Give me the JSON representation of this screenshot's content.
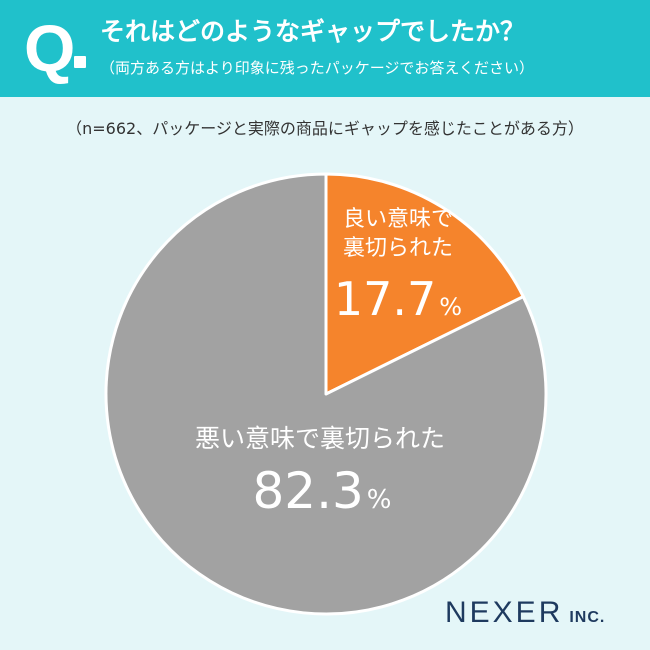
{
  "header": {
    "q_mark": "Q",
    "question": "それはどのようなギャップでしたか？",
    "instruction": "（両方ある方はより印象に残ったパッケージでお答えください）"
  },
  "sample_note": "（n=662、パッケージと実際の商品にギャップを感じたことがある方）",
  "chart_data": {
    "type": "pie",
    "categories": [
      "良い意味で裏切られた",
      "悪い意味で裏切られた"
    ],
    "values": [
      17.7,
      82.3
    ],
    "unit": "%",
    "colors": [
      "#f5842c",
      "#a2a2a2"
    ],
    "slices": [
      {
        "label_lines": [
          "良い意味で",
          "裏切られた"
        ],
        "value": "17.7",
        "unit": "%"
      },
      {
        "label_lines": [
          "悪い意味で裏切られた"
        ],
        "value": "82.3",
        "unit": "%"
      }
    ]
  },
  "logo": {
    "main": "NEXER",
    "suffix": "INC."
  }
}
